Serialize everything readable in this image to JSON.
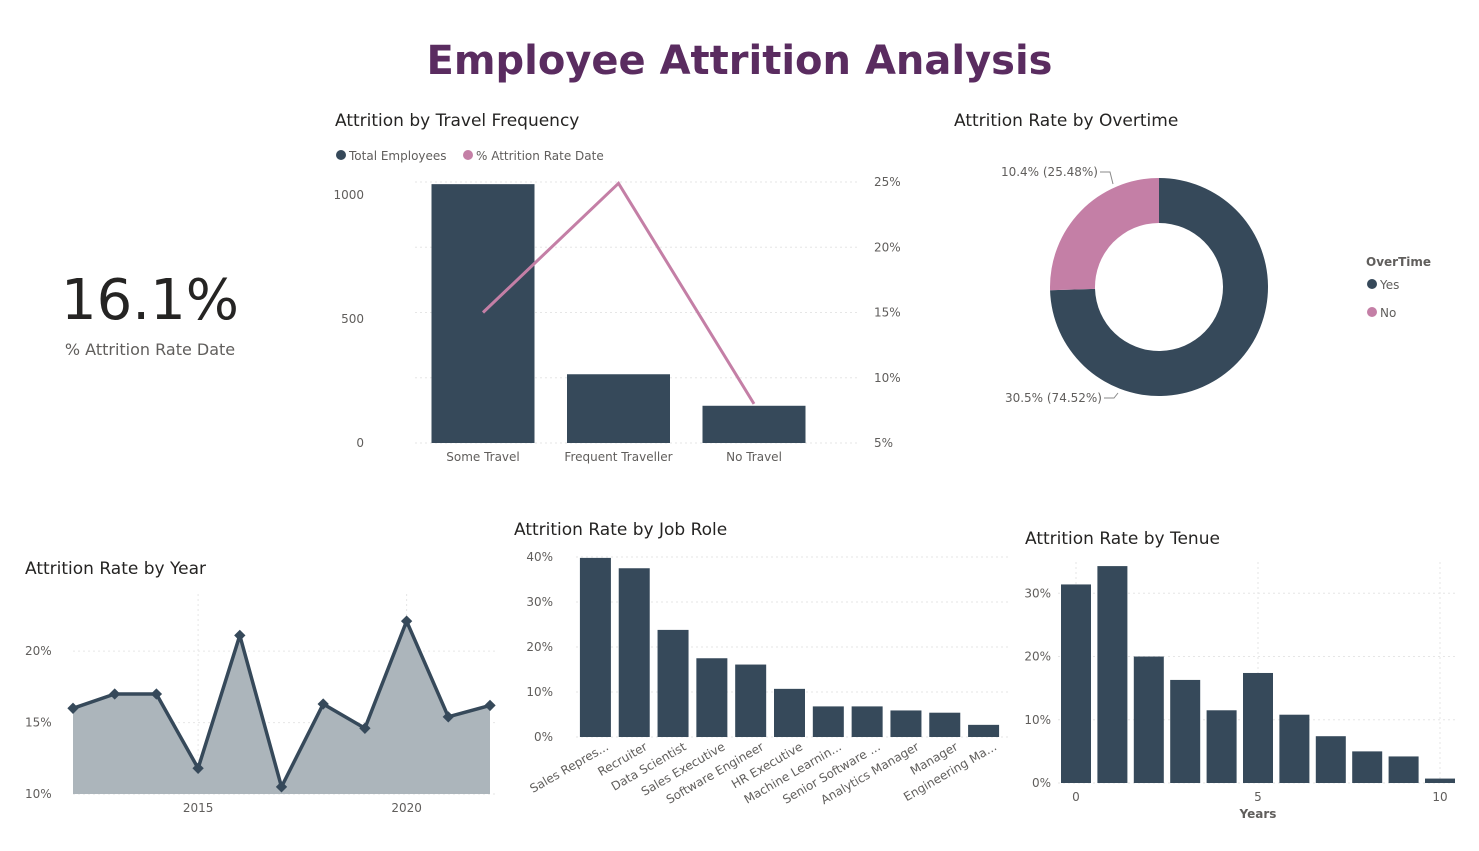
{
  "page": {
    "title": "Employee Attrition Analysis"
  },
  "colors": {
    "dark": "#36495a",
    "pink": "#c47fa6",
    "area": "#acb5bb",
    "title": "#5a2c60"
  },
  "kpi": {
    "value": "16.1%",
    "label": "% Attrition Rate Date"
  },
  "chart_data": [
    {
      "id": "travel",
      "type": "bar",
      "title": "Attrition by Travel Frequency",
      "categories": [
        "Some Travel",
        "Frequent Traveller",
        "No Travel"
      ],
      "series": [
        {
          "name": "Total Employees",
          "kind": "bar",
          "axis": "left",
          "values": [
            1043,
            277,
            150
          ]
        },
        {
          "name": "% Attrition Rate Date",
          "kind": "line",
          "axis": "right",
          "values": [
            15.0,
            24.9,
            8.0
          ]
        }
      ],
      "y_left": {
        "ylim": [
          0,
          1100
        ],
        "ticks": [
          0,
          500,
          1000
        ],
        "tick_labels": [
          "0",
          "500",
          "1000"
        ]
      },
      "y_right": {
        "ylim": [
          5,
          25
        ],
        "ticks": [
          5,
          10,
          15,
          20,
          25
        ],
        "tick_labels": [
          "5%",
          "10%",
          "15%",
          "20%",
          "25%"
        ]
      },
      "legend": "top-left"
    },
    {
      "id": "overtime",
      "type": "pie",
      "title": "Attrition Rate by Overtime",
      "legend_title": "OverTime",
      "labels": [
        "Yes",
        "No"
      ],
      "values": [
        74.52,
        25.48
      ],
      "data_labels": [
        "30.5% (74.52%)",
        "10.4% (25.48%)"
      ],
      "legend": "right"
    },
    {
      "id": "year",
      "type": "area",
      "title": "Attrition Rate by Year",
      "x": [
        2012,
        2013,
        2014,
        2015,
        2016,
        2017,
        2018,
        2019,
        2020,
        2021,
        2022
      ],
      "values": [
        16.0,
        17.0,
        17.0,
        11.8,
        21.1,
        10.5,
        16.3,
        14.6,
        22.1,
        15.4,
        16.2
      ],
      "xticks": [
        2015,
        2020
      ],
      "xtick_labels": [
        "2015",
        "2020"
      ],
      "ylim": [
        10,
        24
      ],
      "yticks": [
        10,
        15,
        20
      ],
      "ytick_labels": [
        "10%",
        "15%",
        "20%"
      ]
    },
    {
      "id": "jobrole",
      "type": "bar",
      "title": "Attrition Rate by Job Role",
      "categories": [
        "Sales Repres...",
        "Recruiter",
        "Data Scientist",
        "Sales Executive",
        "Software Engineer",
        "HR Executive",
        "Machine Learnin...",
        "Senior Software ...",
        "Analytics Manager",
        "Manager",
        "Engineering Ma..."
      ],
      "values": [
        39.8,
        37.5,
        23.8,
        17.5,
        16.1,
        10.7,
        6.8,
        6.8,
        5.9,
        5.4,
        2.7
      ],
      "ylim": [
        0,
        40
      ],
      "yticks": [
        0,
        10,
        20,
        30,
        40
      ],
      "ytick_labels": [
        "0%",
        "10%",
        "20%",
        "30%",
        "40%"
      ]
    },
    {
      "id": "tenure",
      "type": "bar",
      "title": "Attrition Rate by Tenue",
      "x": [
        0,
        1,
        2,
        3,
        4,
        5,
        6,
        7,
        8,
        9,
        10
      ],
      "values": [
        31.4,
        34.3,
        20.0,
        16.3,
        11.5,
        17.4,
        10.8,
        7.4,
        5.0,
        4.2,
        0.7
      ],
      "xlabel": "Years",
      "xticks": [
        0,
        5,
        10
      ],
      "xtick_labels": [
        "0",
        "5",
        "10"
      ],
      "ylim": [
        0,
        34
      ],
      "yticks": [
        0,
        10,
        20,
        30
      ],
      "ytick_labels": [
        "0%",
        "10%",
        "20%",
        "30%"
      ]
    }
  ]
}
